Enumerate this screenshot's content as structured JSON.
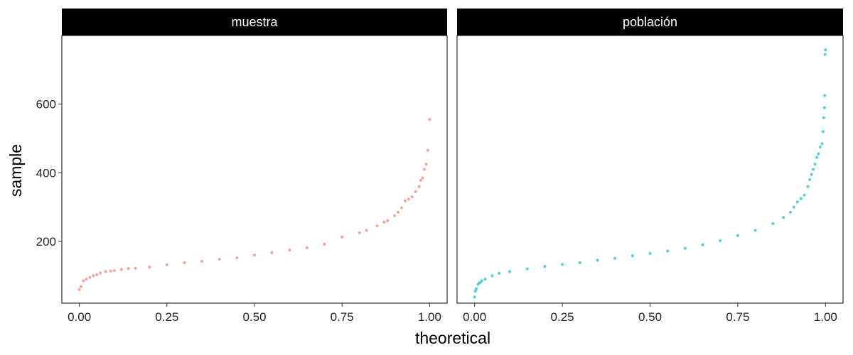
{
  "chart_data": {
    "type": "scatter",
    "xlabel": "theoretical",
    "ylabel": "sample",
    "facets": [
      "muestra",
      "población"
    ],
    "xlim": [
      -0.05,
      1.05
    ],
    "ylim": [
      20,
      800
    ],
    "x_ticks": [
      0.0,
      0.25,
      0.5,
      0.75,
      1.0
    ],
    "x_tick_labels": [
      "0.00",
      "0.25",
      "0.50",
      "0.75",
      "1.00"
    ],
    "y_ticks": [
      200,
      400,
      600
    ],
    "y_tick_labels": [
      "200",
      "400",
      "600"
    ],
    "colors": {
      "muestra": "#F8766D",
      "población": "#00BFC4"
    },
    "series": [
      {
        "name": "muestra",
        "x": [
          0.0,
          0.005,
          0.012,
          0.02,
          0.03,
          0.04,
          0.05,
          0.06,
          0.075,
          0.09,
          0.1,
          0.12,
          0.14,
          0.16,
          0.2,
          0.25,
          0.3,
          0.35,
          0.4,
          0.45,
          0.5,
          0.55,
          0.6,
          0.65,
          0.7,
          0.75,
          0.8,
          0.82,
          0.85,
          0.87,
          0.88,
          0.9,
          0.91,
          0.92,
          0.93,
          0.94,
          0.95,
          0.96,
          0.97,
          0.975,
          0.98,
          0.985,
          0.99,
          0.995,
          1.0
        ],
        "y": [
          60,
          68,
          85,
          90,
          95,
          100,
          103,
          108,
          112,
          114,
          115,
          118,
          121,
          122,
          125,
          132,
          138,
          142,
          148,
          152,
          160,
          167,
          175,
          182,
          192,
          213,
          225,
          232,
          245,
          256,
          260,
          275,
          285,
          298,
          318,
          323,
          330,
          345,
          360,
          378,
          385,
          410,
          425,
          465,
          555
        ]
      },
      {
        "name": "población",
        "x": [
          0.0,
          0.002,
          0.005,
          0.01,
          0.015,
          0.02,
          0.03,
          0.05,
          0.07,
          0.1,
          0.15,
          0.2,
          0.25,
          0.3,
          0.35,
          0.4,
          0.45,
          0.5,
          0.55,
          0.6,
          0.65,
          0.7,
          0.75,
          0.8,
          0.85,
          0.88,
          0.9,
          0.91,
          0.92,
          0.93,
          0.94,
          0.95,
          0.955,
          0.96,
          0.965,
          0.97,
          0.975,
          0.98,
          0.985,
          0.99,
          0.993,
          0.995,
          0.997,
          0.998,
          0.999,
          1.0
        ],
        "y": [
          38,
          55,
          62,
          75,
          80,
          85,
          90,
          100,
          107,
          112,
          120,
          127,
          133,
          138,
          145,
          151,
          158,
          165,
          172,
          180,
          190,
          202,
          217,
          232,
          252,
          270,
          285,
          300,
          315,
          325,
          335,
          360,
          380,
          395,
          410,
          425,
          445,
          455,
          475,
          485,
          520,
          560,
          590,
          625,
          745,
          758
        ]
      }
    ]
  }
}
